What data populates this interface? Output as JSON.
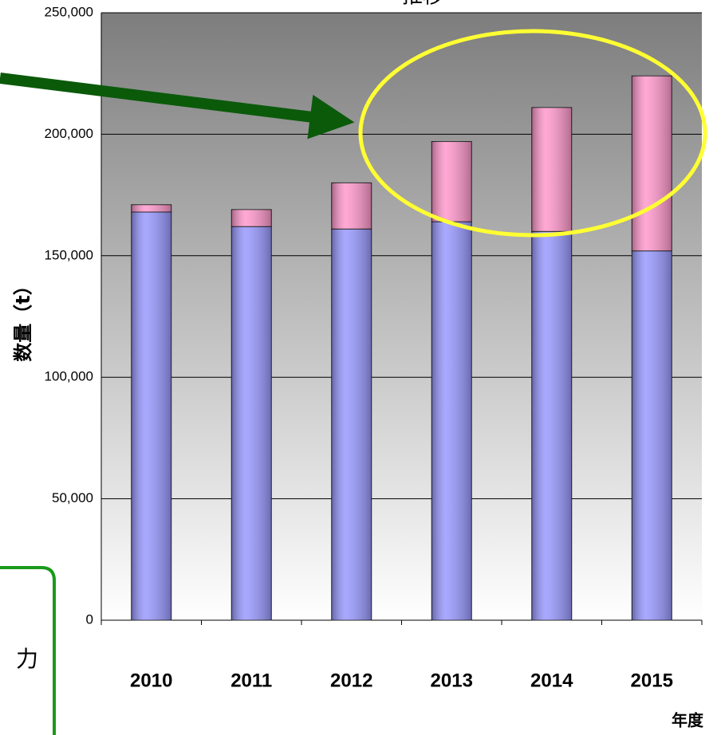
{
  "chart_data": {
    "type": "stacked_bar",
    "title": "推移",
    "categories": [
      "2010",
      "2011",
      "2012",
      "2013",
      "2014",
      "2015"
    ],
    "series": [
      {
        "color": "#9999ff",
        "values": [
          168000,
          162000,
          161000,
          164000,
          160000,
          152000
        ]
      },
      {
        "color": "#ff99cc",
        "values": [
          3000,
          7000,
          19000,
          33000,
          51000,
          72000
        ]
      }
    ],
    "ylim": [
      0,
      250000
    ],
    "yticks": [
      0,
      {
        "value": 50000,
        "label": "50,000"
      },
      {
        "value": 100000,
        "label": "100,000"
      },
      {
        "value": 150000,
        "label": "150,000"
      },
      {
        "value": 200000,
        "label": "200,000"
      },
      {
        "value": 250000,
        "label": "250,000"
      }
    ],
    "ylabel": "数量（t）",
    "xlabel": "年度",
    "grid": true,
    "annotations": [
      "力"
    ]
  }
}
